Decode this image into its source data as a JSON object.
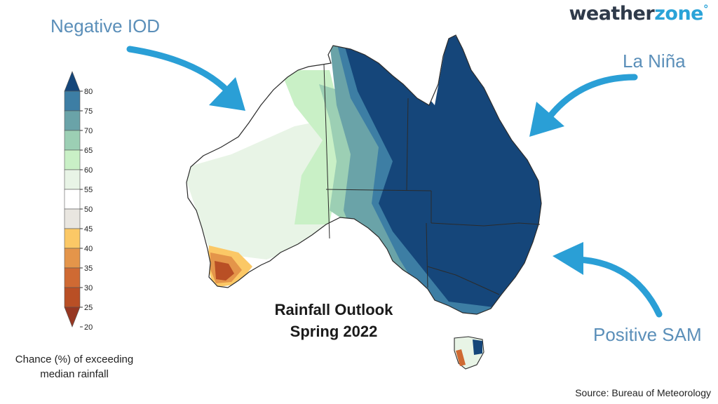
{
  "logo": {
    "part1": "weather",
    "part2": "zone",
    "mark": "°"
  },
  "callouts": {
    "negative_iod": "Negative IOD",
    "la_nina": "La Niña",
    "positive_sam": "Positive SAM"
  },
  "map_title": {
    "line1": "Rainfall Outlook",
    "line2": "Spring 2022"
  },
  "legend": {
    "caption_line1": "Chance (%) of exceeding",
    "caption_line2": "median rainfall",
    "ticks": [
      "80",
      "75",
      "70",
      "65",
      "60",
      "55",
      "50",
      "45",
      "40",
      "35",
      "30",
      "25",
      "20"
    ],
    "colors": [
      "#15467a",
      "#3d7ea4",
      "#6aa3a8",
      "#9ccfb4",
      "#c9f0c6",
      "#e8f4e6",
      "#ffffff",
      "#e9e6e0",
      "#fbc866",
      "#e4954a",
      "#cf6a33",
      "#b94f25",
      "#963722"
    ]
  },
  "source": "Source: Bureau of Meteorology",
  "colors": {
    "arrow": "#2a9fd6",
    "callout_text": "#5b8fb9"
  }
}
